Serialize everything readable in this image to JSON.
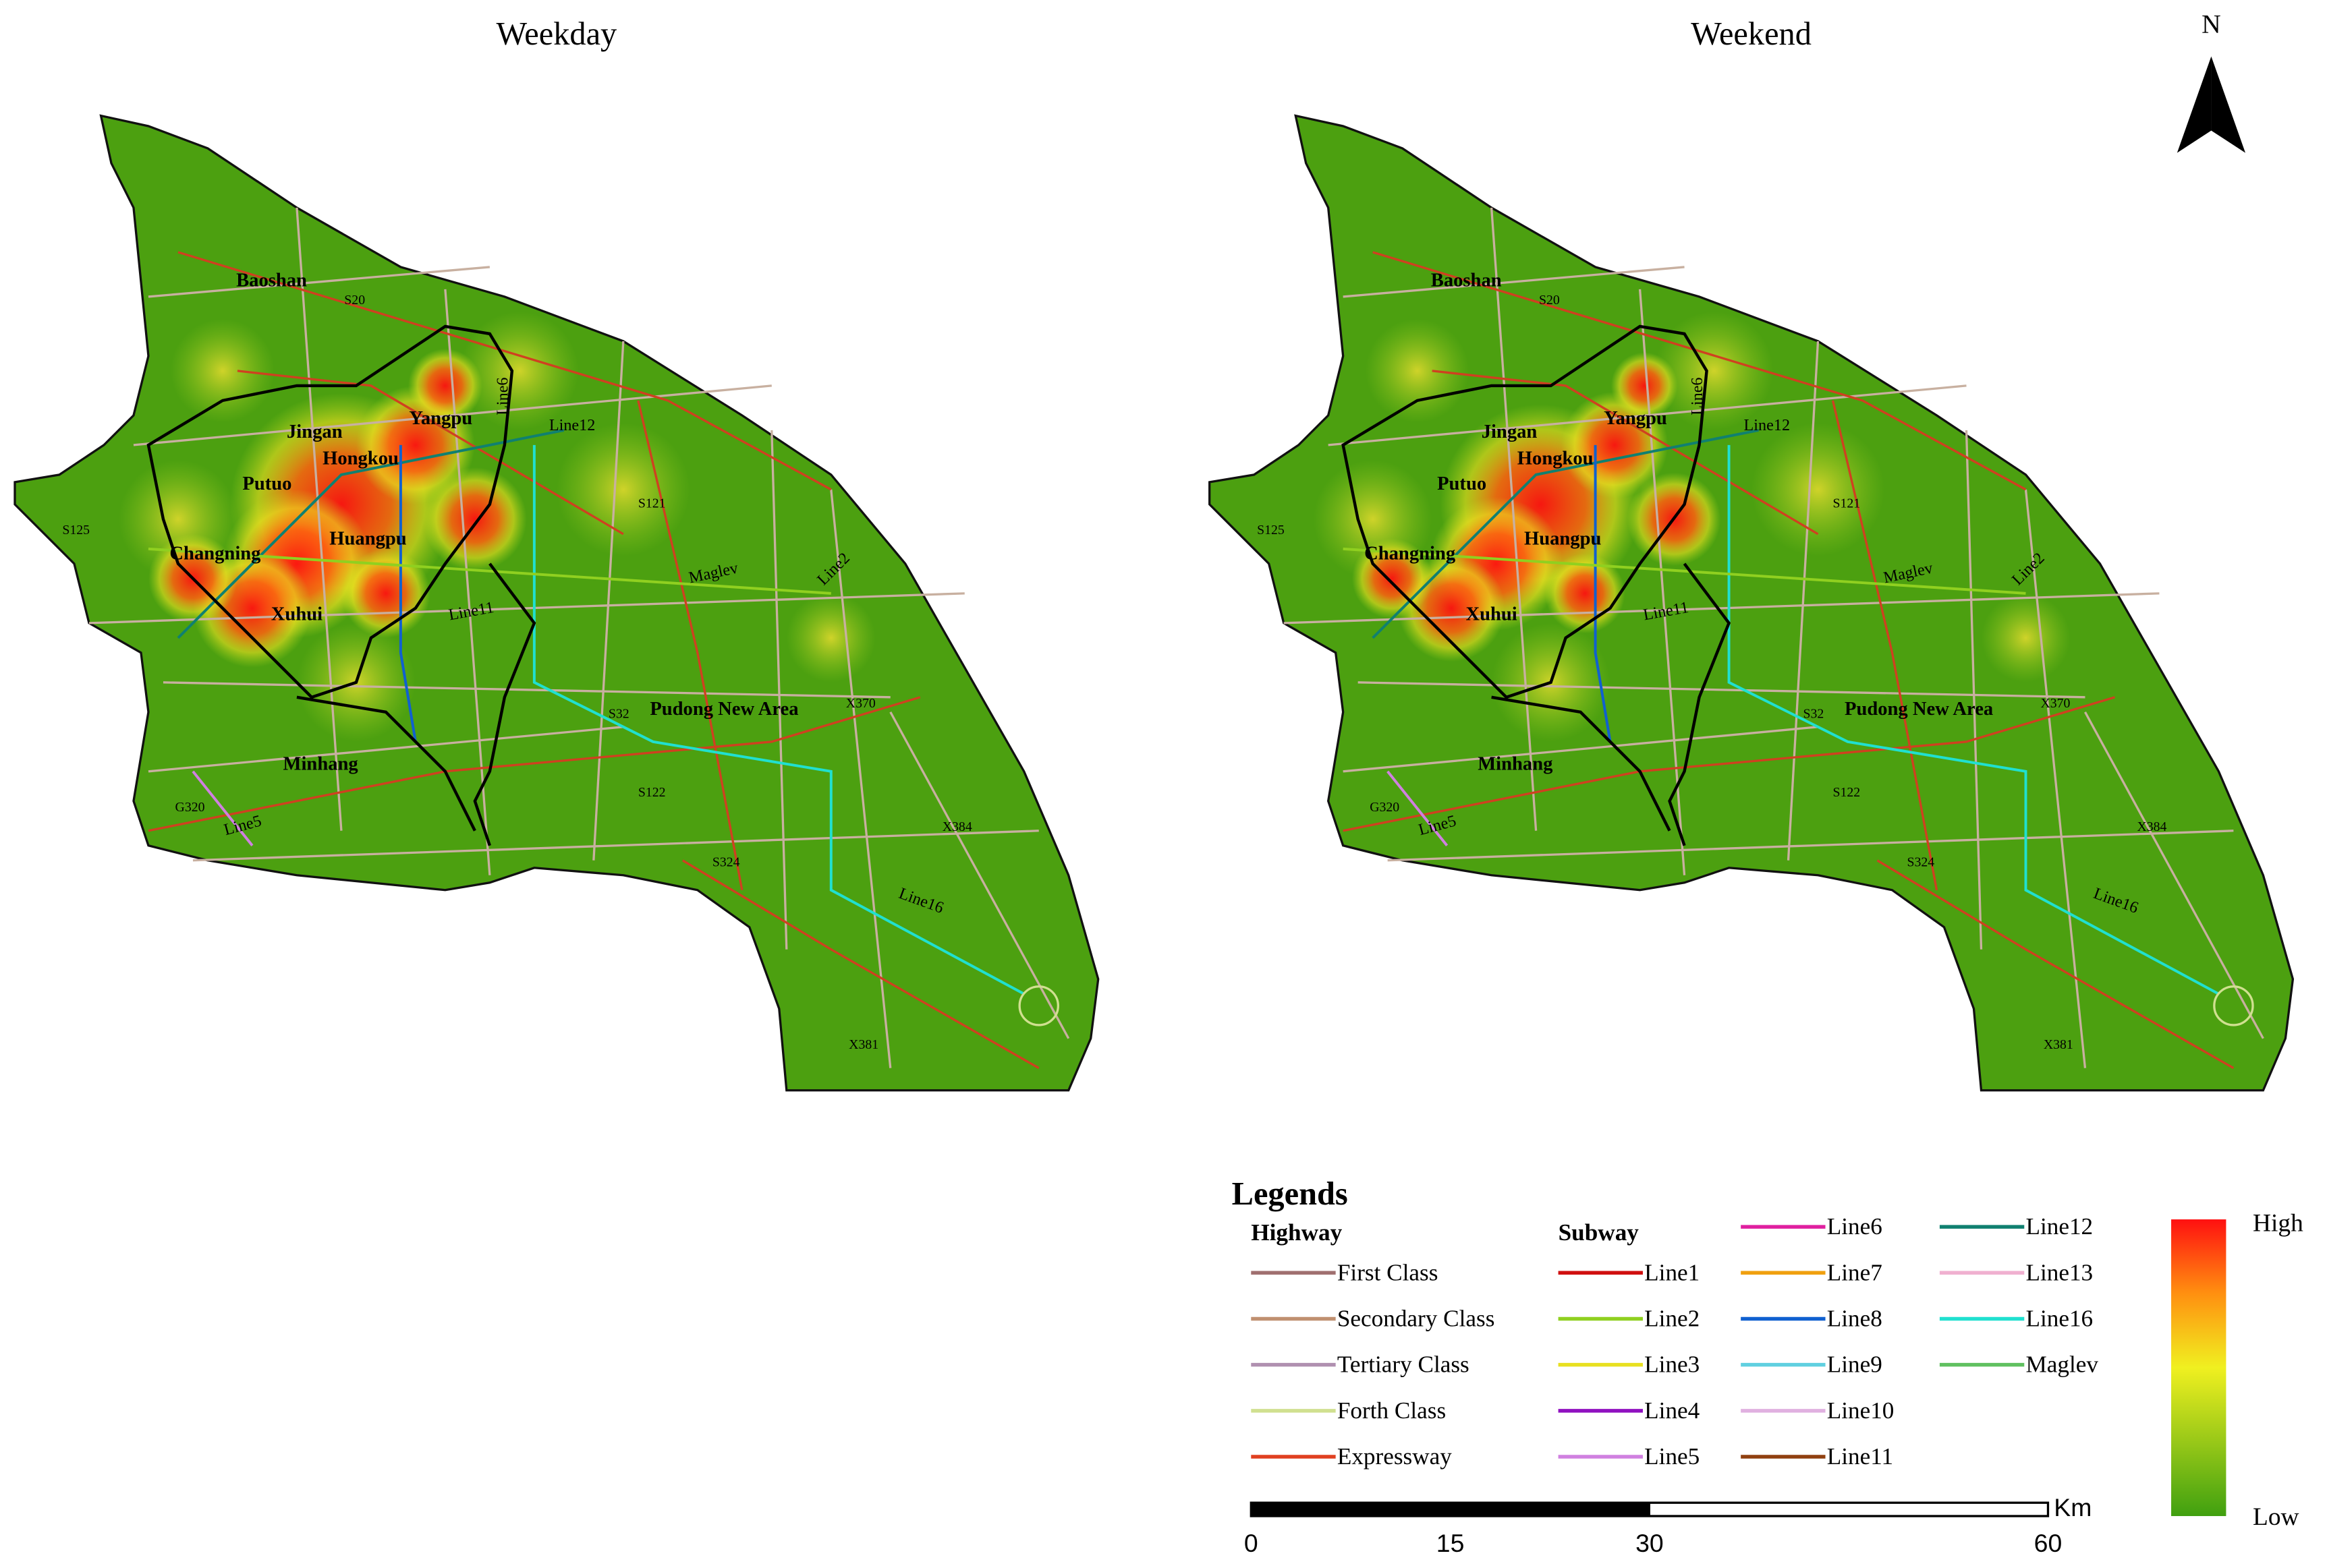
{
  "maps": [
    {
      "title": "Weekday"
    },
    {
      "title": "Weekend"
    }
  ],
  "north": "N",
  "districts": [
    "Baoshan",
    "Jingan",
    "Yangpu",
    "Hongkou",
    "Putuo",
    "Changning",
    "Huangpu",
    "Xuhui",
    "Minhang",
    "Pudong New Area"
  ],
  "line_labels": [
    "Line12",
    "Line11",
    "Line16",
    "Line5",
    "Line2",
    "Line6",
    "Maglev"
  ],
  "road_labels": [
    "S20",
    "S32",
    "S121",
    "X381",
    "S125",
    "G320",
    "X384",
    "S122",
    "X370",
    "S324"
  ],
  "legend": {
    "title": "Legends",
    "highway_title": "Highway",
    "highway": [
      {
        "label": "First Class",
        "color": "#a07070"
      },
      {
        "label": "Secondary Class",
        "color": "#c09070"
      },
      {
        "label": "Tertiary Class",
        "color": "#b090b0"
      },
      {
        "label": "Forth Class",
        "color": "#d0e090"
      },
      {
        "label": "Expressway",
        "color": "#e04020"
      }
    ],
    "subway_title": "Subway",
    "subway": [
      {
        "label": "Line1",
        "color": "#d01010"
      },
      {
        "label": "Line2",
        "color": "#90d020"
      },
      {
        "label": "Line3",
        "color": "#e8e020"
      },
      {
        "label": "Line4",
        "color": "#9010c0"
      },
      {
        "label": "Line5",
        "color": "#d080e0"
      },
      {
        "label": "Line6",
        "color": "#e020a0"
      },
      {
        "label": "Line7",
        "color": "#f0a010"
      },
      {
        "label": "Line8",
        "color": "#1060d0"
      },
      {
        "label": "Line9",
        "color": "#60d0e0"
      },
      {
        "label": "Line10",
        "color": "#e0b0e0"
      },
      {
        "label": "Line11",
        "color": "#904010"
      },
      {
        "label": "Line12",
        "color": "#108070"
      },
      {
        "label": "Line13",
        "color": "#f0b0d0"
      },
      {
        "label": "Line16",
        "color": "#20e0d0"
      },
      {
        "label": "Maglev",
        "color": "#60c060"
      }
    ],
    "high": "High",
    "low": "Low"
  },
  "scale": {
    "ticks": [
      0,
      15,
      30,
      60
    ],
    "unit": "Km"
  }
}
